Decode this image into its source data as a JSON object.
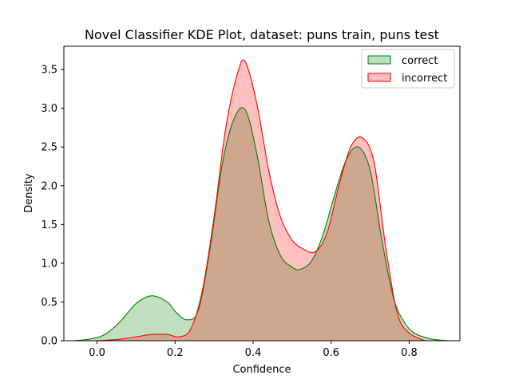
{
  "chart_data": {
    "type": "area",
    "title": "Novel Classifier KDE Plot, dataset: puns train, puns test",
    "xlabel": "Confidence",
    "ylabel": "Density",
    "xlim": [
      -0.085,
      0.93
    ],
    "ylim": [
      0,
      3.8
    ],
    "xticks": [
      0.0,
      0.2,
      0.4,
      0.6,
      0.8
    ],
    "xtick_labels": [
      "0.0",
      "0.2",
      "0.4",
      "0.6",
      "0.8"
    ],
    "yticks": [
      0.0,
      0.5,
      1.0,
      1.5,
      2.0,
      2.5,
      3.0,
      3.5
    ],
    "ytick_labels": [
      "0.0",
      "0.5",
      "1.0",
      "1.5",
      "2.0",
      "2.5",
      "3.0",
      "3.5"
    ],
    "grid": false,
    "legend_position": "top-right",
    "series": [
      {
        "name": "correct",
        "line_color": "#008000",
        "fill_color": "#008000",
        "fill_alpha": 0.25,
        "x": [
          -0.06,
          -0.02,
          0.02,
          0.06,
          0.1,
          0.14,
          0.18,
          0.2,
          0.23,
          0.26,
          0.29,
          0.32,
          0.35,
          0.38,
          0.41,
          0.44,
          0.47,
          0.5,
          0.52,
          0.55,
          0.58,
          0.61,
          0.64,
          0.67,
          0.7,
          0.73,
          0.76,
          0.79,
          0.82,
          0.86,
          0.9
        ],
        "y": [
          0.0,
          0.02,
          0.08,
          0.25,
          0.48,
          0.58,
          0.5,
          0.38,
          0.27,
          0.4,
          1.2,
          2.25,
          2.85,
          2.98,
          2.4,
          1.55,
          1.1,
          0.95,
          0.92,
          1.03,
          1.38,
          1.9,
          2.35,
          2.5,
          2.2,
          1.3,
          0.55,
          0.22,
          0.08,
          0.02,
          0.0
        ]
      },
      {
        "name": "incorrect",
        "line_color": "#ff0000",
        "fill_color": "#ff0000",
        "fill_alpha": 0.25,
        "x": [
          0.0,
          0.06,
          0.1,
          0.14,
          0.18,
          0.21,
          0.24,
          0.27,
          0.3,
          0.33,
          0.36,
          0.38,
          0.41,
          0.44,
          0.47,
          0.5,
          0.53,
          0.56,
          0.59,
          0.62,
          0.65,
          0.68,
          0.71,
          0.74,
          0.77,
          0.8,
          0.84
        ],
        "y": [
          0.0,
          0.02,
          0.05,
          0.08,
          0.08,
          0.05,
          0.15,
          0.65,
          1.6,
          2.75,
          3.45,
          3.6,
          3.05,
          2.2,
          1.6,
          1.3,
          1.18,
          1.15,
          1.4,
          2.0,
          2.5,
          2.62,
          2.3,
          1.2,
          0.35,
          0.1,
          0.0
        ]
      }
    ]
  }
}
